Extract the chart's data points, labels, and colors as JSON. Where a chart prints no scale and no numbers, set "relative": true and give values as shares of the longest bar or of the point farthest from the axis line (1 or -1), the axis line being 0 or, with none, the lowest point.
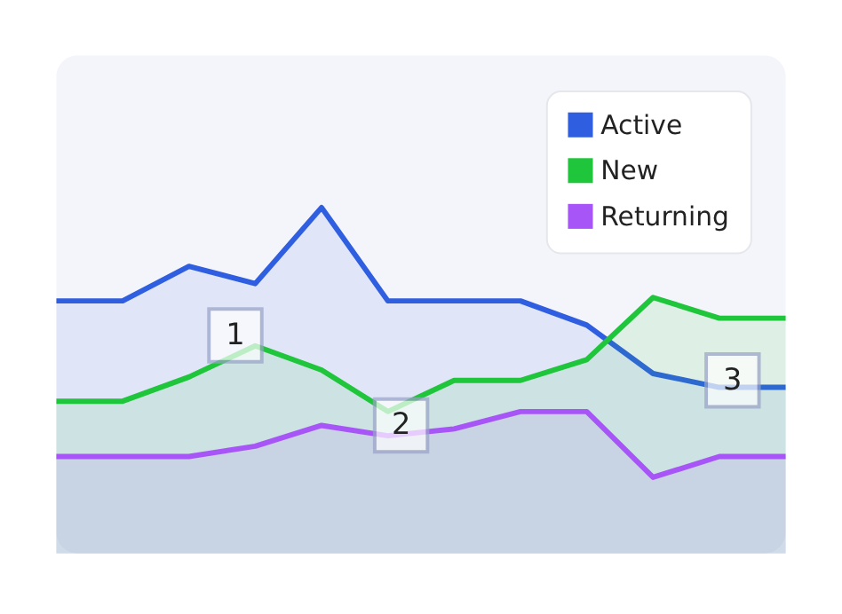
{
  "chart_data": {
    "type": "area",
    "relative": true,
    "categories": [
      null,
      null,
      null,
      null,
      null,
      null,
      null,
      null,
      null,
      null,
      null,
      null
    ],
    "series": [
      {
        "name": "Active",
        "color": "#2f5fe0",
        "values": [
          0.73,
          0.73,
          0.83,
          0.78,
          1,
          0.73,
          0.73,
          0.73,
          0.66,
          0.52,
          0.48,
          0.48
        ]
      },
      {
        "name": "New",
        "color": "#1fc53a",
        "values": [
          0.44,
          0.44,
          0.51,
          0.6,
          0.53,
          0.41,
          0.5,
          0.5,
          0.56,
          0.74,
          0.68,
          0.68
        ]
      },
      {
        "name": "Returning",
        "color": "#a855f7",
        "values": [
          0.28,
          0.28,
          0.28,
          0.31,
          0.37,
          0.34,
          0.36,
          0.41,
          0.41,
          0.22,
          0.28,
          0.28
        ]
      }
    ],
    "annotations": [
      "1",
      "2",
      "3"
    ],
    "legend": "top right",
    "marker": "none",
    "line_style": "solid"
  }
}
